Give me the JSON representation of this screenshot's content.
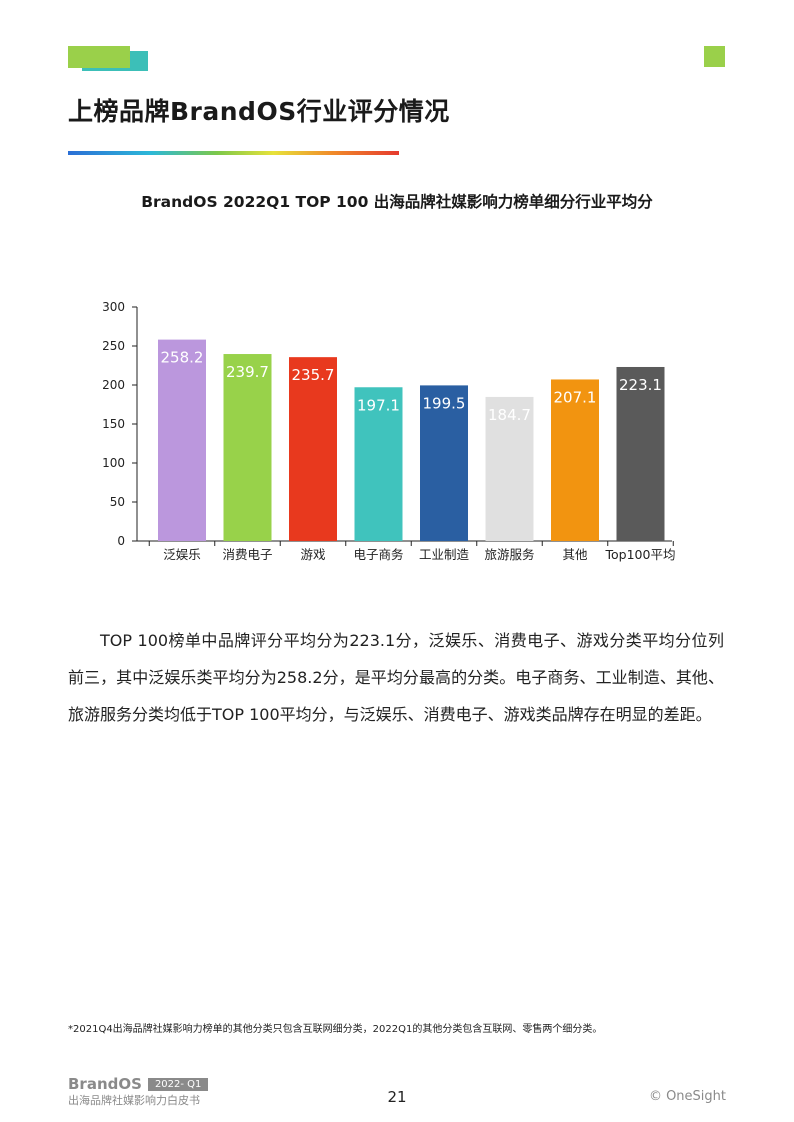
{
  "page": {
    "title": "上榜品牌BrandOS行业评分情况",
    "body": "TOP 100榜单中品牌评分平均分为223.1分，泛娱乐、消费电子、游戏分类平均分位列前三，其中泛娱乐类平均分为258.2分，是平均分最高的分类。电子商务、工业制造、其他、旅游服务分类均低于TOP 100平均分，与泛娱乐、消费电子、游戏类品牌存在明显的差距。",
    "footnote": "*2021Q4出海品牌社媒影响力榜单的其他分类只包含互联网细分类，2022Q1的其他分类包含互联网、零售两个细分类。"
  },
  "footer": {
    "brand": "BrandOS",
    "badge": "2022- Q1",
    "subtitle": "出海品牌社媒影响力白皮书",
    "page_number": "21",
    "copyright": "© OneSight"
  },
  "colors": {
    "accent_green": "#9ad04a",
    "accent_teal": "#3cbfb8"
  },
  "chart_data": {
    "type": "bar",
    "title": "BrandOS 2022Q1 TOP 100 出海品牌社媒影响力榜单细分行业平均分",
    "categories": [
      "泛娱乐",
      "消费电子",
      "游戏",
      "电子商务",
      "工业制造",
      "旅游服务",
      "其他",
      "Top100平均"
    ],
    "values": [
      258.2,
      239.7,
      235.7,
      197.1,
      199.5,
      184.7,
      207.1,
      223.1
    ],
    "value_labels": [
      "258.2",
      "239.7",
      "235.7",
      "197.1",
      "199.5",
      "184.7",
      "207.1",
      "223.1"
    ],
    "colors": [
      "#bb97dd",
      "#98d24a",
      "#e8391e",
      "#40c3bd",
      "#2a5fa2",
      "#e0e0e0",
      "#f29410",
      "#5a5a5a"
    ],
    "ylim": [
      0,
      300
    ],
    "yticks": [
      0,
      50,
      100,
      150,
      200,
      250,
      300
    ],
    "ytick_labels": [
      "0",
      "50",
      "100",
      "150",
      "200",
      "250",
      "300"
    ],
    "grid": false,
    "legend": "none"
  }
}
